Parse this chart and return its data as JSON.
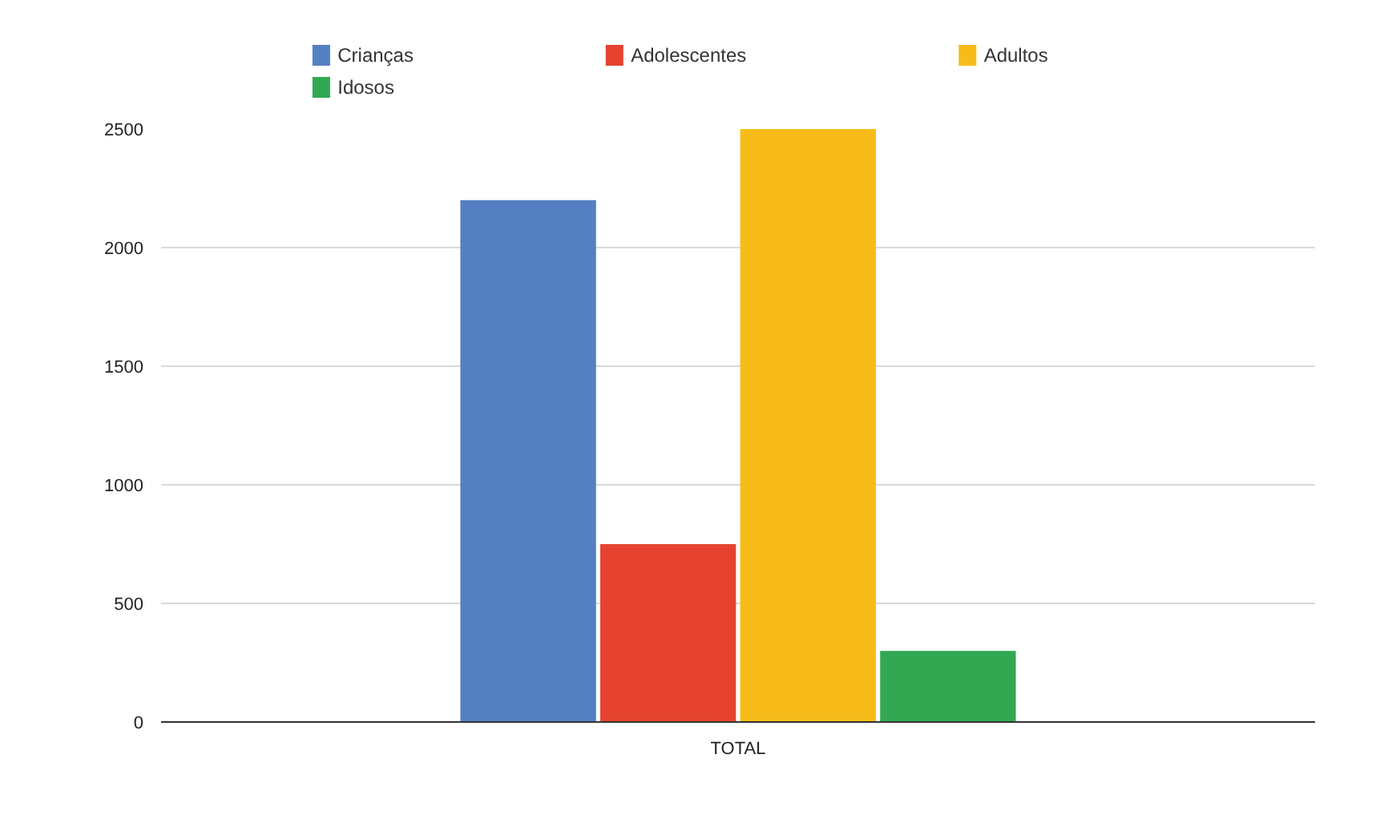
{
  "chart_data": {
    "type": "bar",
    "categories": [
      "TOTAL"
    ],
    "series": [
      {
        "name": "Crianças",
        "color": "#5480c2",
        "values": [
          2200
        ]
      },
      {
        "name": "Adolescentes",
        "color": "#e5432f",
        "values": [
          750
        ]
      },
      {
        "name": "Adultos",
        "color": "#f7bc19",
        "values": [
          2500
        ]
      },
      {
        "name": "Idosos",
        "color": "#33a853",
        "values": [
          300
        ]
      }
    ],
    "ylim": [
      0,
      2500
    ],
    "yticks": [
      0,
      500,
      1000,
      1500,
      2000,
      2500
    ],
    "grid": "y",
    "legend": "top"
  }
}
